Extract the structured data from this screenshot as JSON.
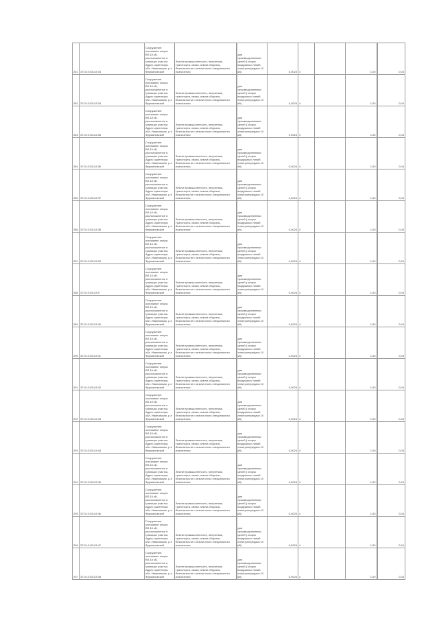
{
  "table": {
    "rows": [
      {
        "num": "281",
        "cadastral": "37:01:010143:34"
      },
      {
        "num": "282",
        "cadastral": "37:01:010143:34"
      },
      {
        "num": "283",
        "cadastral": "37:01:010143:35"
      },
      {
        "num": "284",
        "cadastral": "37:01:010143:36"
      },
      {
        "num": "285",
        "cadastral": "37:01:010143:37"
      },
      {
        "num": "286",
        "cadastral": "37:01:010143:38"
      },
      {
        "num": "287",
        "cadastral": "37:01:010143:39"
      },
      {
        "num": "288",
        "cadastral": "37:01:010143:9"
      },
      {
        "num": "289",
        "cadastral": "37:01:010143:40"
      },
      {
        "num": "290",
        "cadastral": "37:01:010143:41"
      },
      {
        "num": "291",
        "cadastral": "37:01:010143:42"
      },
      {
        "num": "292",
        "cadastral": "37:01:010143:43"
      },
      {
        "num": "293",
        "cadastral": "37:01:010143:44"
      },
      {
        "num": "294",
        "cadastral": "37:01:010143:45"
      },
      {
        "num": "295",
        "cadastral": "37:01:010143:46"
      },
      {
        "num": "296",
        "cadastral": "37:01:010143:47"
      },
      {
        "num": "297",
        "cadastral": "37:01:010143:48"
      }
    ],
    "description": "Сооружение: основание опоры ВЛ-10 кВ, расположенное в границах участка. Адрес ориентира: обл. Ивановская, р-н Фурмановский",
    "category": "Земли промышленности, энергетики, транспорта, связи, земли обороны, безопасности и земли иного специального назначения",
    "use": "для производственных целей ( опоры воздушных линий электропередачи 10 кВ)",
    "area": "0,0024",
    "count": "4",
    "value1": "1,00",
    "value2": "0,04"
  }
}
